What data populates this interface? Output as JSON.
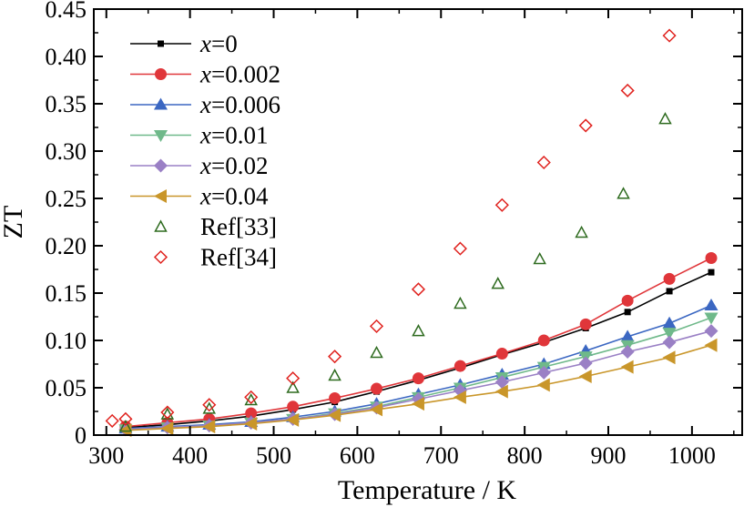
{
  "chart_data": {
    "type": "line",
    "title": "",
    "xlabel": "Temperature / K",
    "ylabel": "ZT",
    "xlim": [
      285,
      1060
    ],
    "ylim": [
      0,
      0.45
    ],
    "xticks": [
      300,
      400,
      500,
      600,
      700,
      800,
      900,
      1000
    ],
    "yticks": [
      0,
      0.05,
      0.1,
      0.15,
      0.2,
      0.25,
      0.3,
      0.35,
      0.4,
      0.45
    ],
    "ytick_labels": [
      "0",
      "0.05",
      "0.10",
      "0.15",
      "0.20",
      "0.25",
      "0.30",
      "0.35",
      "0.40",
      "0.45"
    ],
    "grid": false,
    "legend_position": "top-left",
    "series": [
      {
        "name_var": "x",
        "name_val": "=0",
        "color": "#000000",
        "marker": "square",
        "line": true,
        "x": [
          323,
          373,
          423,
          473,
          523,
          573,
          623,
          673,
          723,
          773,
          823,
          873,
          923,
          973,
          1023
        ],
        "y": [
          0.008,
          0.011,
          0.015,
          0.02,
          0.027,
          0.035,
          0.046,
          0.058,
          0.071,
          0.085,
          0.098,
          0.113,
          0.13,
          0.152,
          0.172
        ]
      },
      {
        "name_var": "x",
        "name_val": "=0.002",
        "color": "#e0363a",
        "marker": "circle",
        "line": true,
        "x": [
          323,
          373,
          423,
          473,
          523,
          573,
          623,
          673,
          723,
          773,
          823,
          873,
          923,
          973,
          1023
        ],
        "y": [
          0.009,
          0.013,
          0.017,
          0.023,
          0.03,
          0.039,
          0.049,
          0.06,
          0.073,
          0.086,
          0.1,
          0.117,
          0.142,
          0.165,
          0.187
        ]
      },
      {
        "name_var": "x",
        "name_val": "=0.006",
        "color": "#3b67c2",
        "marker": "triangle-up",
        "line": true,
        "x": [
          323,
          373,
          423,
          473,
          523,
          573,
          623,
          673,
          723,
          773,
          823,
          873,
          923,
          973,
          1023
        ],
        "y": [
          0.007,
          0.009,
          0.011,
          0.014,
          0.019,
          0.025,
          0.033,
          0.043,
          0.053,
          0.064,
          0.075,
          0.089,
          0.104,
          0.118,
          0.137
        ]
      },
      {
        "name_var": "x",
        "name_val": "=0.01",
        "color": "#6fb98a",
        "marker": "triangle-down",
        "line": true,
        "x": [
          323,
          373,
          423,
          473,
          523,
          573,
          623,
          673,
          723,
          773,
          823,
          873,
          923,
          973,
          1023
        ],
        "y": [
          0.006,
          0.008,
          0.01,
          0.013,
          0.017,
          0.023,
          0.03,
          0.04,
          0.05,
          0.061,
          0.072,
          0.083,
          0.095,
          0.108,
          0.124
        ]
      },
      {
        "name_var": "x",
        "name_val": "=0.02",
        "color": "#9a80c5",
        "marker": "diamond",
        "line": true,
        "x": [
          323,
          373,
          423,
          473,
          523,
          573,
          623,
          673,
          723,
          773,
          823,
          873,
          923,
          973,
          1023
        ],
        "y": [
          0.006,
          0.008,
          0.01,
          0.013,
          0.017,
          0.022,
          0.029,
          0.038,
          0.047,
          0.056,
          0.066,
          0.076,
          0.088,
          0.098,
          0.11
        ]
      },
      {
        "name_var": "x",
        "name_val": "=0.04",
        "color": "#c9962a",
        "marker": "triangle-left",
        "line": true,
        "x": [
          323,
          373,
          423,
          473,
          523,
          573,
          623,
          673,
          723,
          773,
          823,
          873,
          923,
          973,
          1023
        ],
        "y": [
          0.005,
          0.007,
          0.009,
          0.012,
          0.016,
          0.021,
          0.027,
          0.033,
          0.04,
          0.046,
          0.053,
          0.062,
          0.072,
          0.082,
          0.095
        ]
      },
      {
        "name": "Ref[33]",
        "color": "#2e6b1f",
        "marker": "triangle-up-open",
        "line": false,
        "x": [
          323,
          373,
          423,
          473,
          523,
          573,
          623,
          673,
          723,
          768,
          818,
          868,
          918,
          968
        ],
        "y": [
          0.009,
          0.022,
          0.028,
          0.037,
          0.05,
          0.063,
          0.087,
          0.11,
          0.139,
          0.16,
          0.186,
          0.214,
          0.255,
          0.334
        ]
      },
      {
        "name": "Ref[34]",
        "color": "#e0221e",
        "marker": "diamond-open",
        "line": false,
        "x": [
          307,
          323,
          373,
          423,
          473,
          523,
          573,
          623,
          673,
          723,
          773,
          823,
          873,
          923,
          973
        ],
        "y": [
          0.015,
          0.017,
          0.024,
          0.032,
          0.04,
          0.06,
          0.083,
          0.115,
          0.154,
          0.197,
          0.243,
          0.288,
          0.327,
          0.364,
          0.422
        ]
      }
    ]
  }
}
